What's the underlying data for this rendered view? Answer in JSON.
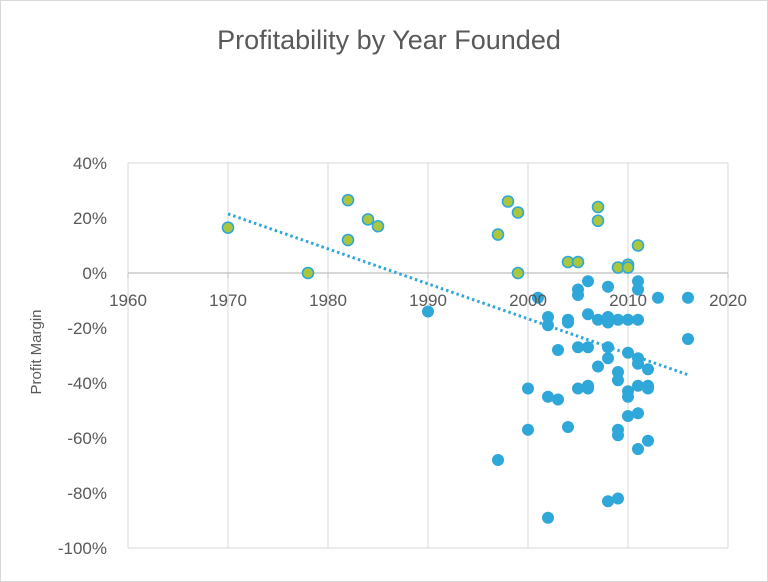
{
  "chart_data": {
    "type": "scatter",
    "title": "Profitability by Year Founded",
    "xlabel": "",
    "ylabel": "Profit Margin",
    "xlim": [
      1960,
      2020
    ],
    "ylim": [
      -100,
      40
    ],
    "x_ticks": [
      1960,
      1970,
      1980,
      1990,
      2000,
      2010,
      2020
    ],
    "x_tick_labels": [
      "1960",
      "1970",
      "1980",
      "1990",
      "2000",
      "2010",
      "2020"
    ],
    "y_ticks": [
      40,
      20,
      0,
      -20,
      -40,
      -60,
      -80,
      -100
    ],
    "y_tick_labels": [
      "40%",
      "20%",
      "0%",
      "-20%",
      "-40%",
      "-60%",
      "-80%",
      "-100%"
    ],
    "grid": "vertical",
    "legend": "none",
    "colors": {
      "positive_fill": "#a9c63d",
      "positive_stroke": "#2fa7d9",
      "negative_fill": "#2fa7d9",
      "trendline": "#2fa7d9",
      "grid": "#d9d9d9",
      "axis": "#bfbfbf",
      "text": "#595959"
    },
    "series": [
      {
        "name": "Profit Margin",
        "points": [
          {
            "x": 1970,
            "y": 16.5
          },
          {
            "x": 1978,
            "y": 0
          },
          {
            "x": 1982,
            "y": 26.5
          },
          {
            "x": 1982,
            "y": 12
          },
          {
            "x": 1984,
            "y": 19.5
          },
          {
            "x": 1985,
            "y": 17
          },
          {
            "x": 1997,
            "y": 14
          },
          {
            "x": 1998,
            "y": 26
          },
          {
            "x": 1999,
            "y": 22
          },
          {
            "x": 1999,
            "y": 0
          },
          {
            "x": 1990,
            "y": -14
          },
          {
            "x": 1997,
            "y": -68
          },
          {
            "x": 2000,
            "y": -42
          },
          {
            "x": 2000,
            "y": -57
          },
          {
            "x": 2001,
            "y": -9
          },
          {
            "x": 2002,
            "y": -16
          },
          {
            "x": 2002,
            "y": -19
          },
          {
            "x": 2002,
            "y": -45
          },
          {
            "x": 2002,
            "y": -89
          },
          {
            "x": 2003,
            "y": -46
          },
          {
            "x": 2003,
            "y": -28
          },
          {
            "x": 2004,
            "y": 4
          },
          {
            "x": 2004,
            "y": -17
          },
          {
            "x": 2004,
            "y": -18
          },
          {
            "x": 2004,
            "y": -56
          },
          {
            "x": 2005,
            "y": 4
          },
          {
            "x": 2005,
            "y": -6
          },
          {
            "x": 2005,
            "y": -8
          },
          {
            "x": 2005,
            "y": -27
          },
          {
            "x": 2005,
            "y": -42
          },
          {
            "x": 2006,
            "y": -3
          },
          {
            "x": 2006,
            "y": -15
          },
          {
            "x": 2006,
            "y": -27
          },
          {
            "x": 2006,
            "y": -41
          },
          {
            "x": 2006,
            "y": -42
          },
          {
            "x": 2007,
            "y": 24
          },
          {
            "x": 2007,
            "y": 19
          },
          {
            "x": 2007,
            "y": -17
          },
          {
            "x": 2007,
            "y": -34
          },
          {
            "x": 2008,
            "y": -5
          },
          {
            "x": 2008,
            "y": -16
          },
          {
            "x": 2008,
            "y": -18
          },
          {
            "x": 2008,
            "y": -27
          },
          {
            "x": 2008,
            "y": -31
          },
          {
            "x": 2008,
            "y": -83
          },
          {
            "x": 2009,
            "y": 2
          },
          {
            "x": 2009,
            "y": -17
          },
          {
            "x": 2009,
            "y": -36
          },
          {
            "x": 2009,
            "y": -39
          },
          {
            "x": 2009,
            "y": -57
          },
          {
            "x": 2009,
            "y": -59
          },
          {
            "x": 2009,
            "y": -82
          },
          {
            "x": 2010,
            "y": 3
          },
          {
            "x": 2010,
            "y": 2
          },
          {
            "x": 2010,
            "y": -17
          },
          {
            "x": 2010,
            "y": -29
          },
          {
            "x": 2010,
            "y": -43
          },
          {
            "x": 2010,
            "y": -45
          },
          {
            "x": 2010,
            "y": -52
          },
          {
            "x": 2011,
            "y": 10
          },
          {
            "x": 2011,
            "y": -3
          },
          {
            "x": 2011,
            "y": -6
          },
          {
            "x": 2011,
            "y": -17
          },
          {
            "x": 2011,
            "y": -31
          },
          {
            "x": 2011,
            "y": -33
          },
          {
            "x": 2011,
            "y": -41
          },
          {
            "x": 2011,
            "y": -51
          },
          {
            "x": 2011,
            "y": -64
          },
          {
            "x": 2012,
            "y": -35
          },
          {
            "x": 2012,
            "y": -41
          },
          {
            "x": 2012,
            "y": -42
          },
          {
            "x": 2012,
            "y": -61
          },
          {
            "x": 2013,
            "y": -9
          },
          {
            "x": 2016,
            "y": -9
          },
          {
            "x": 2016,
            "y": -24
          }
        ]
      }
    ],
    "trendline": {
      "type": "linear",
      "style": "dotted",
      "x": [
        1970,
        2016
      ],
      "y": [
        21.5,
        -37
      ]
    }
  }
}
